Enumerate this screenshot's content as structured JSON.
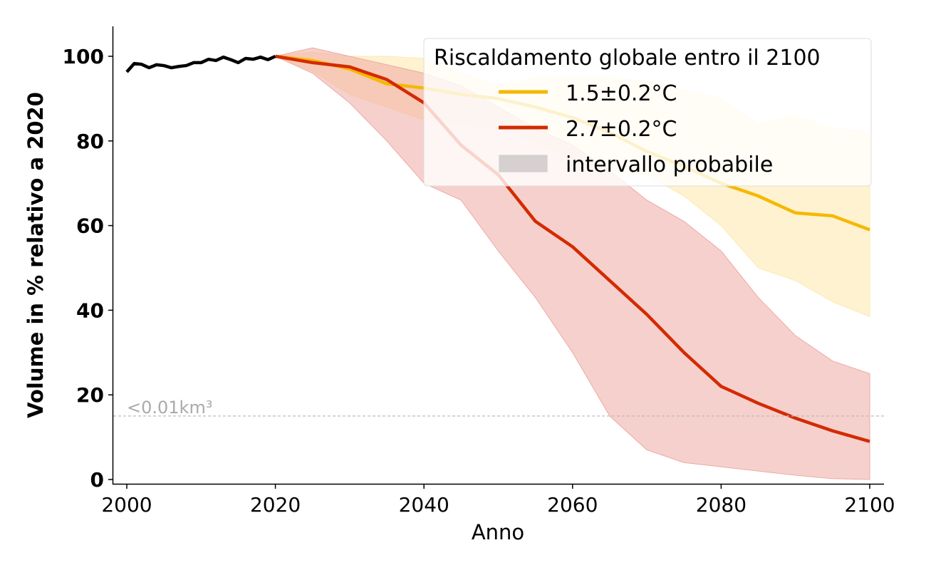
{
  "chart_data": {
    "type": "line",
    "xlabel": "Anno",
    "ylabel": "Volume in % relativo a 2020",
    "xlim": [
      1998,
      2102
    ],
    "ylim": [
      -1,
      107
    ],
    "xticks": [
      2000,
      2020,
      2040,
      2060,
      2080,
      2100
    ],
    "yticks": [
      0,
      20,
      40,
      60,
      80,
      100
    ],
    "threshold": {
      "value": 15,
      "label": "<0.01km³"
    },
    "historical": {
      "x": [
        2000,
        2001,
        2002,
        2003,
        2004,
        2005,
        2006,
        2007,
        2008,
        2009,
        2010,
        2011,
        2012,
        2013,
        2014,
        2015,
        2016,
        2017,
        2018,
        2019,
        2020
      ],
      "y": [
        96.3,
        98.3,
        98.1,
        97.3,
        98,
        97.8,
        97.3,
        97.6,
        97.8,
        98.5,
        98.5,
        99.3,
        99,
        99.8,
        99.2,
        98.5,
        99.5,
        99.3,
        99.8,
        99.2,
        100
      ],
      "color": "#000000"
    },
    "projection_x": [
      2020,
      2025,
      2030,
      2035,
      2040,
      2045,
      2050,
      2055,
      2060,
      2065,
      2070,
      2075,
      2080,
      2085,
      2090,
      2095,
      2100
    ],
    "series": [
      {
        "name": "1.5±0.2°C",
        "color": "#f5b800",
        "fill": "#fde9b0",
        "mean": [
          100,
          99,
          97,
          93.5,
          92.5,
          91,
          90,
          88,
          85.5,
          82,
          77.5,
          74,
          70,
          67,
          63,
          62.3,
          59
        ],
        "upper": [
          100,
          101,
          100,
          100,
          99.5,
          96,
          93,
          95,
          95,
          95,
          94,
          92,
          90,
          84,
          86,
          83,
          82
        ],
        "lower": [
          100,
          96.5,
          91,
          88,
          85,
          84,
          83,
          80,
          76,
          73,
          72,
          67,
          60,
          50,
          47,
          42,
          38.5
        ]
      },
      {
        "name": "2.7±0.2°C",
        "color": "#d42a00",
        "fill": "#eea9a3",
        "mean": [
          100,
          98.5,
          97.5,
          94.5,
          89,
          79,
          72,
          61,
          55,
          47,
          39,
          30,
          22,
          18,
          14.5,
          11.5,
          9
        ],
        "upper": [
          100,
          102,
          100,
          98,
          96,
          93,
          88,
          83,
          79,
          73,
          66,
          61,
          54,
          43,
          34,
          28,
          25
        ],
        "lower": [
          100,
          96,
          89,
          80,
          70,
          66,
          54,
          43,
          30,
          15,
          7,
          4,
          3,
          2,
          1,
          0.2,
          0
        ]
      }
    ],
    "legend": {
      "title": "Riscaldamento globale entro il 2100",
      "placement": "top-right",
      "entries": [
        "1.5±0.2°C",
        "2.7±0.2°C",
        "intervallo probabile"
      ]
    }
  }
}
